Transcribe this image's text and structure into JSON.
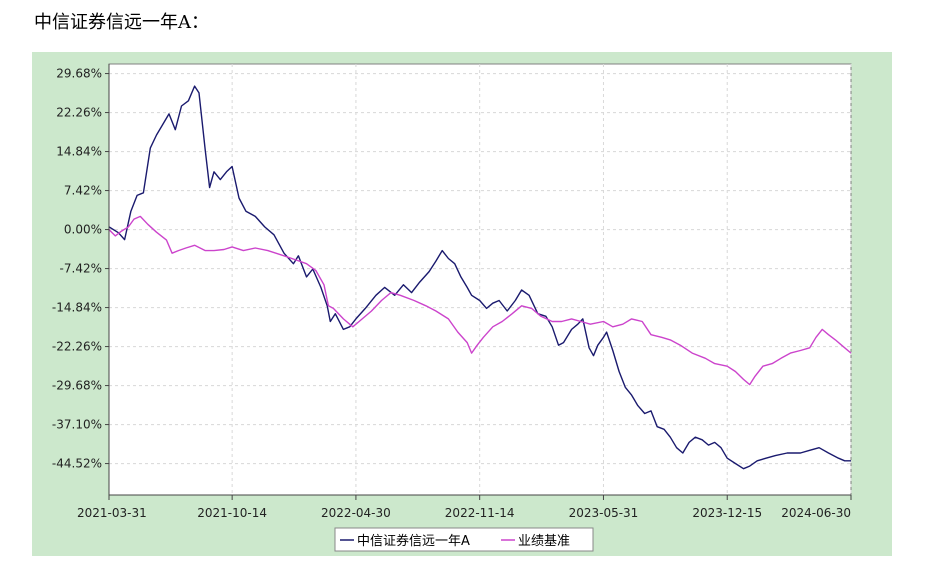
{
  "heading": "中信证券信远一年A：",
  "chart_data": {
    "type": "line",
    "title": "",
    "xlabel": "",
    "ylabel": "",
    "x_ticks": [
      "2021-03-31",
      "2021-10-14",
      "2022-04-30",
      "2022-11-14",
      "2023-05-31",
      "2023-12-15",
      "2024-06-30"
    ],
    "y_ticks": [
      "29.68%",
      "22.26%",
      "14.84%",
      "7.42%",
      "0.00%",
      "-7.42%",
      "-14.84%",
      "-22.26%",
      "-29.68%",
      "-37.10%",
      "-44.52%"
    ],
    "ylim": [
      -50.5,
      31.5
    ],
    "xlim": [
      "2021-03-31",
      "2024-06-30"
    ],
    "grid": true,
    "legend_position": "bottom",
    "series": [
      {
        "name": "中信证券信远一年A",
        "color": "#1a1a6e",
        "points": [
          [
            "2021-03-31",
            0.5
          ],
          [
            "2021-04-15",
            -0.6
          ],
          [
            "2021-04-25",
            -1.9
          ],
          [
            "2021-05-05",
            3.5
          ],
          [
            "2021-05-15",
            6.5
          ],
          [
            "2021-05-25",
            7.0
          ],
          [
            "2021-06-05",
            15.5
          ],
          [
            "2021-06-15",
            18.0
          ],
          [
            "2021-06-25",
            20.0
          ],
          [
            "2021-07-05",
            22.0
          ],
          [
            "2021-07-15",
            19.0
          ],
          [
            "2021-07-25",
            23.5
          ],
          [
            "2021-08-05",
            24.5
          ],
          [
            "2021-08-15",
            27.3
          ],
          [
            "2021-08-22",
            26.0
          ],
          [
            "2021-09-01",
            15.0
          ],
          [
            "2021-09-08",
            8.0
          ],
          [
            "2021-09-15",
            11.0
          ],
          [
            "2021-09-25",
            9.5
          ],
          [
            "2021-10-05",
            11.0
          ],
          [
            "2021-10-14",
            12.0
          ],
          [
            "2021-10-25",
            6.0
          ],
          [
            "2021-11-05",
            3.5
          ],
          [
            "2021-11-20",
            2.5
          ],
          [
            "2021-12-05",
            0.5
          ],
          [
            "2021-12-20",
            -1.0
          ],
          [
            "2022-01-05",
            -4.5
          ],
          [
            "2022-01-20",
            -6.5
          ],
          [
            "2022-01-28",
            -5.0
          ],
          [
            "2022-02-10",
            -9.0
          ],
          [
            "2022-02-20",
            -7.5
          ],
          [
            "2022-03-05",
            -11.0
          ],
          [
            "2022-03-15",
            -14.5
          ],
          [
            "2022-03-20",
            -17.5
          ],
          [
            "2022-03-28",
            -16.0
          ],
          [
            "2022-04-10",
            -19.0
          ],
          [
            "2022-04-20",
            -18.5
          ],
          [
            "2022-04-30",
            -17.0
          ],
          [
            "2022-05-15",
            -15.0
          ],
          [
            "2022-06-01",
            -12.5
          ],
          [
            "2022-06-15",
            -11.0
          ],
          [
            "2022-07-01",
            -12.5
          ],
          [
            "2022-07-15",
            -10.5
          ],
          [
            "2022-07-28",
            -12.0
          ],
          [
            "2022-08-10",
            -10.0
          ],
          [
            "2022-08-25",
            -8.0
          ],
          [
            "2022-09-05",
            -6.0
          ],
          [
            "2022-09-15",
            -4.0
          ],
          [
            "2022-09-25",
            -5.5
          ],
          [
            "2022-10-05",
            -6.5
          ],
          [
            "2022-10-15",
            -9.0
          ],
          [
            "2022-10-25",
            -11.0
          ],
          [
            "2022-11-01",
            -12.5
          ],
          [
            "2022-11-14",
            -13.5
          ],
          [
            "2022-11-25",
            -15.0
          ],
          [
            "2022-12-05",
            -14.0
          ],
          [
            "2022-12-15",
            -13.5
          ],
          [
            "2022-12-28",
            -15.5
          ],
          [
            "2023-01-10",
            -13.5
          ],
          [
            "2023-01-20",
            -11.5
          ],
          [
            "2023-02-01",
            -12.5
          ],
          [
            "2023-02-15",
            -16.0
          ],
          [
            "2023-02-28",
            -16.5
          ],
          [
            "2023-03-10",
            -18.5
          ],
          [
            "2023-03-20",
            -22.0
          ],
          [
            "2023-03-28",
            -21.5
          ],
          [
            "2023-04-10",
            -19.0
          ],
          [
            "2023-04-20",
            -18.0
          ],
          [
            "2023-04-28",
            -17.0
          ],
          [
            "2023-05-08",
            -22.5
          ],
          [
            "2023-05-15",
            -24.0
          ],
          [
            "2023-05-22",
            -22.0
          ],
          [
            "2023-05-31",
            -20.5
          ],
          [
            "2023-06-05",
            -19.5
          ],
          [
            "2023-06-15",
            -23.0
          ],
          [
            "2023-06-25",
            -27.0
          ],
          [
            "2023-07-05",
            -30.0
          ],
          [
            "2023-07-15",
            -31.5
          ],
          [
            "2023-07-25",
            -33.5
          ],
          [
            "2023-08-05",
            -35.0
          ],
          [
            "2023-08-15",
            -34.5
          ],
          [
            "2023-08-25",
            -37.5
          ],
          [
            "2023-09-05",
            -38.0
          ],
          [
            "2023-09-15",
            -39.5
          ],
          [
            "2023-09-25",
            -41.5
          ],
          [
            "2023-10-05",
            -42.5
          ],
          [
            "2023-10-15",
            -40.5
          ],
          [
            "2023-10-25",
            -39.5
          ],
          [
            "2023-11-05",
            -40.0
          ],
          [
            "2023-11-15",
            -41.0
          ],
          [
            "2023-11-25",
            -40.5
          ],
          [
            "2023-12-05",
            -41.5
          ],
          [
            "2023-12-15",
            -43.5
          ],
          [
            "2023-12-28",
            -44.5
          ],
          [
            "2024-01-10",
            -45.5
          ],
          [
            "2024-01-20",
            -45.0
          ],
          [
            "2024-02-01",
            -44.0
          ],
          [
            "2024-02-15",
            -43.5
          ],
          [
            "2024-03-01",
            -43.0
          ],
          [
            "2024-03-20",
            -42.5
          ],
          [
            "2024-04-10",
            -42.5
          ],
          [
            "2024-04-25",
            -42.0
          ],
          [
            "2024-05-10",
            -41.5
          ],
          [
            "2024-05-25",
            -42.5
          ],
          [
            "2024-06-10",
            -43.5
          ],
          [
            "2024-06-20",
            -44.0
          ],
          [
            "2024-06-30",
            -44.0
          ]
        ]
      },
      {
        "name": "业绩基准",
        "color": "#cc44cc",
        "points": [
          [
            "2021-03-31",
            0.0
          ],
          [
            "2021-04-10",
            -1.2
          ],
          [
            "2021-04-20",
            -0.3
          ],
          [
            "2021-05-01",
            0.5
          ],
          [
            "2021-05-10",
            2.0
          ],
          [
            "2021-05-20",
            2.5
          ],
          [
            "2021-06-01",
            1.0
          ],
          [
            "2021-06-15",
            -0.5
          ],
          [
            "2021-07-01",
            -2.0
          ],
          [
            "2021-07-10",
            -4.5
          ],
          [
            "2021-07-20",
            -4.0
          ],
          [
            "2021-08-01",
            -3.5
          ],
          [
            "2021-08-15",
            -3.0
          ],
          [
            "2021-09-01",
            -4.0
          ],
          [
            "2021-09-15",
            -4.0
          ],
          [
            "2021-10-01",
            -3.8
          ],
          [
            "2021-10-14",
            -3.3
          ],
          [
            "2021-11-01",
            -4.0
          ],
          [
            "2021-11-20",
            -3.5
          ],
          [
            "2021-12-10",
            -4.0
          ],
          [
            "2022-01-05",
            -5.0
          ],
          [
            "2022-01-25",
            -5.8
          ],
          [
            "2022-02-10",
            -6.5
          ],
          [
            "2022-02-25",
            -7.8
          ],
          [
            "2022-03-10",
            -10.5
          ],
          [
            "2022-03-17",
            -14.5
          ],
          [
            "2022-03-25",
            -15.0
          ],
          [
            "2022-04-10",
            -17.0
          ],
          [
            "2022-04-25",
            -18.5
          ],
          [
            "2022-05-10",
            -17.0
          ],
          [
            "2022-05-25",
            -15.5
          ],
          [
            "2022-06-10",
            -13.5
          ],
          [
            "2022-06-25",
            -12.0
          ],
          [
            "2022-07-10",
            -12.5
          ],
          [
            "2022-08-01",
            -13.5
          ],
          [
            "2022-08-20",
            -14.5
          ],
          [
            "2022-09-05",
            -15.5
          ],
          [
            "2022-09-25",
            -17.0
          ],
          [
            "2022-10-10",
            -19.5
          ],
          [
            "2022-10-25",
            -21.5
          ],
          [
            "2022-11-01",
            -23.5
          ],
          [
            "2022-11-10",
            -22.0
          ],
          [
            "2022-11-20",
            -20.5
          ],
          [
            "2022-12-05",
            -18.5
          ],
          [
            "2022-12-20",
            -17.5
          ],
          [
            "2023-01-05",
            -16.0
          ],
          [
            "2023-01-20",
            -14.5
          ],
          [
            "2023-02-05",
            -15.0
          ],
          [
            "2023-02-20",
            -16.5
          ],
          [
            "2023-03-10",
            -17.5
          ],
          [
            "2023-03-25",
            -17.5
          ],
          [
            "2023-04-10",
            -17.0
          ],
          [
            "2023-04-25",
            -17.5
          ],
          [
            "2023-05-10",
            -18.0
          ],
          [
            "2023-05-31",
            -17.5
          ],
          [
            "2023-06-15",
            -18.5
          ],
          [
            "2023-07-01",
            -18.0
          ],
          [
            "2023-07-15",
            -17.0
          ],
          [
            "2023-08-01",
            -17.5
          ],
          [
            "2023-08-15",
            -20.0
          ],
          [
            "2023-09-01",
            -20.5
          ],
          [
            "2023-09-15",
            -21.0
          ],
          [
            "2023-10-01",
            -22.0
          ],
          [
            "2023-10-20",
            -23.5
          ],
          [
            "2023-11-10",
            -24.5
          ],
          [
            "2023-11-25",
            -25.5
          ],
          [
            "2023-12-15",
            -26.0
          ],
          [
            "2023-12-28",
            -27.0
          ],
          [
            "2024-01-10",
            -28.5
          ],
          [
            "2024-01-20",
            -29.5
          ],
          [
            "2024-01-28",
            -28.0
          ],
          [
            "2024-02-10",
            -26.0
          ],
          [
            "2024-02-25",
            -25.5
          ],
          [
            "2024-03-10",
            -24.5
          ],
          [
            "2024-03-25",
            -23.5
          ],
          [
            "2024-04-10",
            -23.0
          ],
          [
            "2024-04-25",
            -22.5
          ],
          [
            "2024-05-05",
            -20.5
          ],
          [
            "2024-05-15",
            -19.0
          ],
          [
            "2024-05-25",
            -20.0
          ],
          [
            "2024-06-05",
            -21.0
          ],
          [
            "2024-06-15",
            -22.0
          ],
          [
            "2024-06-30",
            -23.5
          ]
        ]
      }
    ]
  }
}
